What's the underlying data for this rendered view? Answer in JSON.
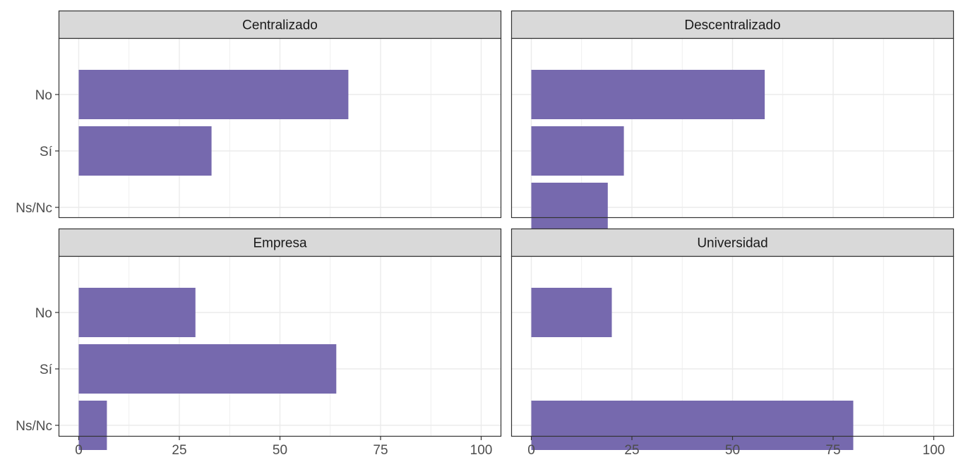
{
  "chart_data": {
    "type": "bar",
    "orientation": "horizontal",
    "layout": "facet-grid-2x2",
    "categories": [
      "No",
      "Sí",
      "Ns/Nc"
    ],
    "xlim": [
      0,
      100
    ],
    "x_ticks": [
      0,
      25,
      50,
      75,
      100
    ],
    "x_tick_labels": [
      "0",
      "25",
      "50",
      "75",
      "100"
    ],
    "grid": true,
    "colors": {
      "bar": "#7669AE",
      "strip": "#D9D9D9",
      "grid": "#EBEBEB",
      "border": "#333333"
    },
    "panels": [
      {
        "title": "Centralizado",
        "values": [
          67,
          33,
          0
        ]
      },
      {
        "title": "Descentralizado",
        "values": [
          58,
          23,
          19
        ]
      },
      {
        "title": "Empresa",
        "values": [
          29,
          64,
          7
        ]
      },
      {
        "title": "Universidad",
        "values": [
          20,
          0,
          80
        ]
      }
    ]
  }
}
